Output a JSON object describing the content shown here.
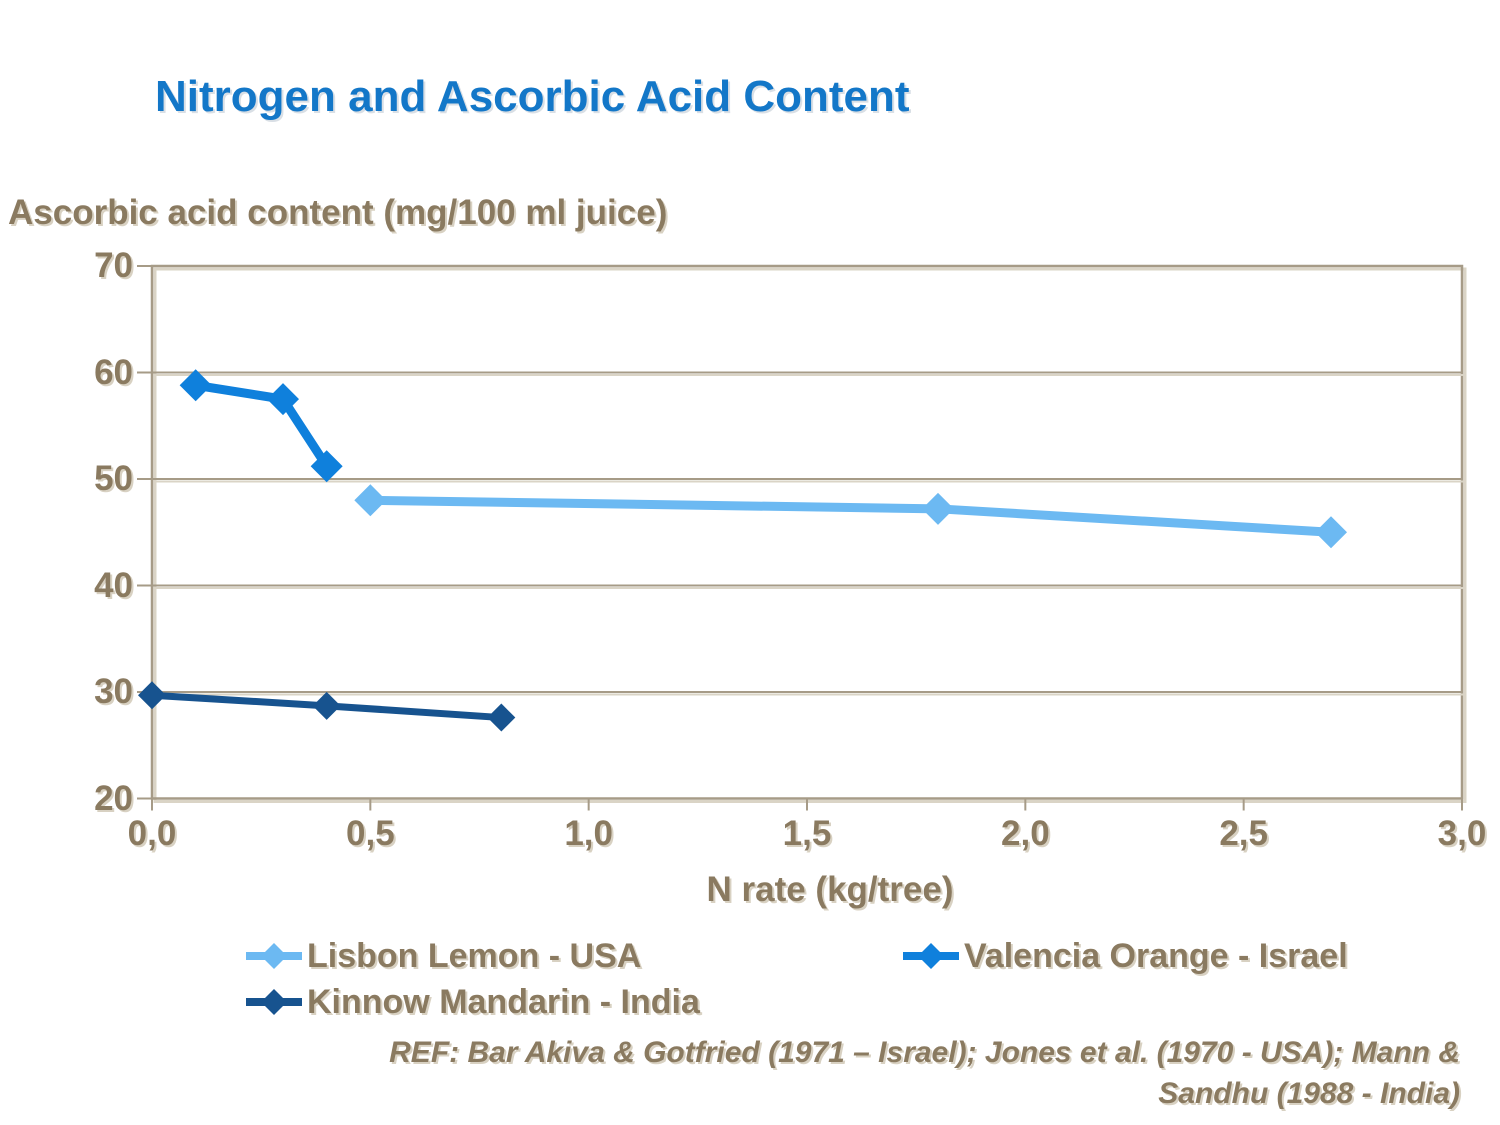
{
  "title": {
    "text": "Nitrogen and Ascorbic Acid Content",
    "color": "#1377C8"
  },
  "colors": {
    "text_brown": "#8A7A60",
    "grid_tan": "#A69B87",
    "grid_shadow": "#DAD4C6",
    "background": "#FFFFFF"
  },
  "reference": {
    "line1": "REF: Bar Akiva & Gotfried (1971 – Israel); Jones et al. (1970 - USA); Mann &",
    "line2": "Sandhu (1988 - India)"
  },
  "chart_data": {
    "type": "line",
    "title": "Nitrogen and Ascorbic Acid Content",
    "xlabel": "N rate (kg/tree)",
    "ylabel": "Ascorbic acid content (mg/100 ml juice)",
    "xlim": [
      0.0,
      3.0
    ],
    "ylim": [
      20,
      70
    ],
    "x_ticks": [
      0.0,
      0.5,
      1.0,
      1.5,
      2.0,
      2.5,
      3.0
    ],
    "x_tick_labels": [
      "0,0",
      "0,5",
      "1,0",
      "1,5",
      "2,0",
      "2,5",
      "3,0"
    ],
    "y_ticks": [
      20,
      30,
      40,
      50,
      60,
      70
    ],
    "y_tick_labels": [
      "20",
      "30",
      "40",
      "50",
      "60",
      "70"
    ],
    "grid": "horizontal-only",
    "legend_position": "bottom",
    "series": [
      {
        "name": "Lisbon Lemon - USA",
        "color": "#6CB9F2",
        "x": [
          0.5,
          1.8,
          2.7
        ],
        "y": [
          48.0,
          47.2,
          45.0
        ],
        "line_width": 9,
        "marker": "diamond",
        "marker_size": 32
      },
      {
        "name": "Valencia Orange - Israel",
        "color": "#0F80DC",
        "x": [
          0.1,
          0.3,
          0.4
        ],
        "y": [
          58.8,
          57.5,
          51.2
        ],
        "line_width": 9,
        "marker": "diamond",
        "marker_size": 32
      },
      {
        "name": "Kinnow Mandarin - India",
        "color": "#17538F",
        "x": [
          0.0,
          0.4,
          0.8
        ],
        "y": [
          29.7,
          28.7,
          27.6
        ],
        "line_width": 7,
        "marker": "diamond",
        "marker_size": 28
      }
    ]
  }
}
